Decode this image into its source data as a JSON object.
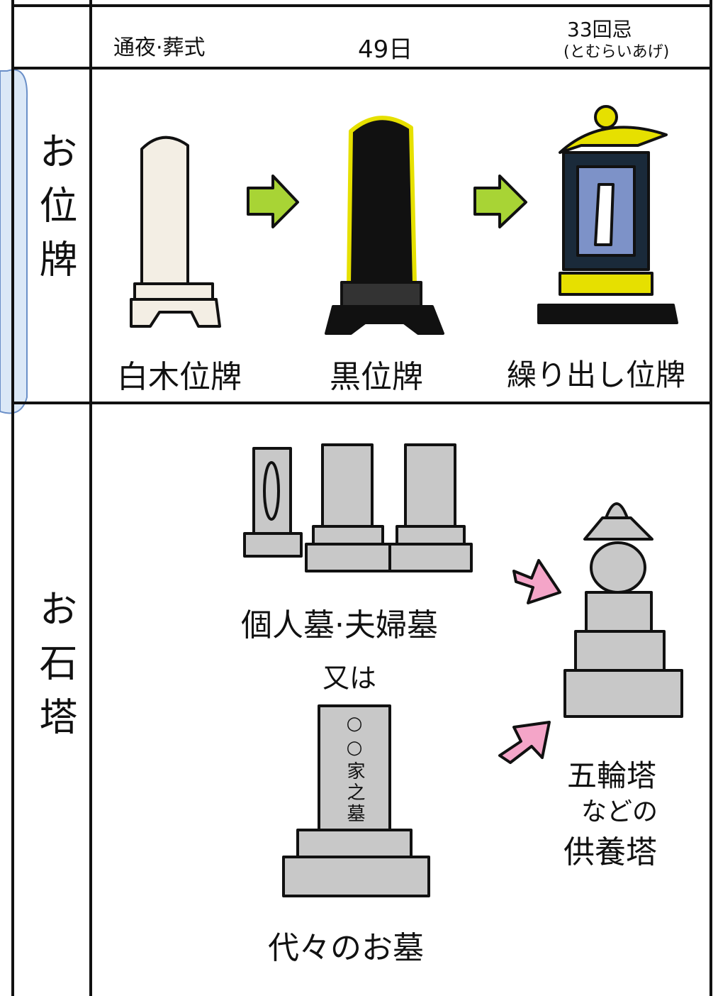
{
  "header": {
    "funeral": "通夜·葬式",
    "day49": "49日",
    "anniversary33": "33回忌",
    "anniversary33_note": "(とむらいあげ)"
  },
  "rows": [
    {
      "label": "お位牌",
      "items": [
        "白木位牌",
        "黒位牌",
        "繰り出し位牌"
      ]
    },
    {
      "label": "お石塔",
      "items": [
        "個人墓·夫婦墓",
        "又は",
        "代々のお墓",
        "五輪塔",
        "などの",
        "供養塔"
      ],
      "stone_text": "○○家之墓"
    }
  ]
}
